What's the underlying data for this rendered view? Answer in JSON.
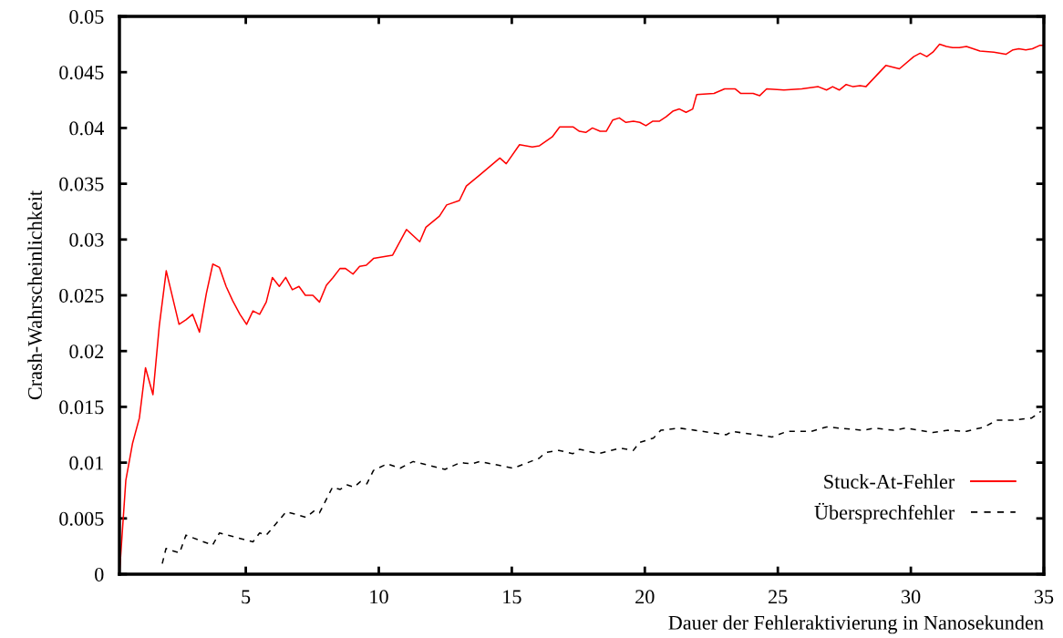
{
  "chart_data": {
    "type": "line",
    "xlabel": "Dauer der Fehleraktivierung in Nanosekunden",
    "ylabel": "Crash-Wahrscheinlichkeit",
    "xlim": [
      0.25,
      35
    ],
    "xticks": [
      5,
      10,
      15,
      20,
      25,
      30,
      35
    ],
    "ylim": [
      0,
      0.05
    ],
    "yticks": [
      0,
      0.005,
      0.01,
      0.015,
      0.02,
      0.025,
      0.03,
      0.035,
      0.04,
      0.045,
      0.05
    ],
    "grid": false,
    "legend": "bottom right",
    "marker": "none",
    "series": [
      {
        "name": "Stuck-At-Fehler",
        "color": "#ff0000",
        "line_style": "solid",
        "x": [
          0.25,
          0.49,
          0.74,
          1.0,
          1.23,
          1.51,
          1.75,
          2.01,
          2.49,
          2.75,
          3.0,
          3.26,
          3.52,
          3.76,
          4.01,
          4.26,
          4.51,
          4.78,
          5.03,
          5.27,
          5.52,
          5.77,
          6.0,
          6.26,
          6.5,
          6.75,
          7.0,
          7.24,
          7.52,
          7.77,
          8.03,
          8.28,
          8.54,
          8.75,
          9.03,
          9.28,
          9.53,
          9.8,
          10.26,
          10.52,
          11.04,
          11.54,
          11.77,
          12.28,
          12.55,
          13.03,
          13.29,
          13.8,
          14.55,
          14.79,
          15.29,
          15.77,
          16.04,
          16.52,
          16.8,
          17.3,
          17.54,
          17.78,
          18.03,
          18.32,
          18.55,
          18.79,
          19.04,
          19.29,
          19.57,
          19.81,
          20.04,
          20.29,
          20.54,
          20.8,
          21.05,
          21.3,
          21.55,
          21.8,
          21.95,
          22.6,
          23.0,
          23.4,
          23.6,
          23.86,
          24.07,
          24.32,
          24.58,
          25.23,
          25.9,
          26.52,
          26.83,
          27.06,
          27.31,
          27.57,
          27.83,
          28.09,
          28.31,
          29.06,
          29.57,
          30.11,
          30.35,
          30.6,
          30.83,
          31.08,
          31.34,
          31.57,
          31.82,
          32.09,
          32.6,
          33.12,
          33.57,
          33.84,
          34.06,
          34.32,
          34.57,
          34.84,
          35.0
        ],
        "values": [
          0,
          0.0084,
          0.0117,
          0.014,
          0.0185,
          0.0161,
          0.0223,
          0.0272,
          0.0224,
          0.0228,
          0.0233,
          0.0217,
          0.0252,
          0.0278,
          0.0275,
          0.0258,
          0.0245,
          0.0233,
          0.0224,
          0.0236,
          0.0233,
          0.0244,
          0.0266,
          0.0258,
          0.0266,
          0.0255,
          0.0258,
          0.025,
          0.025,
          0.0244,
          0.0259,
          0.0266,
          0.0274,
          0.0274,
          0.0269,
          0.0276,
          0.0277,
          0.0283,
          0.0285,
          0.0286,
          0.0309,
          0.0298,
          0.0311,
          0.0321,
          0.0331,
          0.0335,
          0.0348,
          0.0358,
          0.0373,
          0.0368,
          0.0385,
          0.0383,
          0.0384,
          0.0392,
          0.0401,
          0.0401,
          0.0397,
          0.0396,
          0.04,
          0.0397,
          0.0397,
          0.0407,
          0.0409,
          0.0405,
          0.0406,
          0.0405,
          0.0402,
          0.0406,
          0.0406,
          0.041,
          0.0415,
          0.0417,
          0.0414,
          0.0417,
          0.043,
          0.0431,
          0.0435,
          0.0435,
          0.0431,
          0.0431,
          0.0431,
          0.0429,
          0.0435,
          0.0434,
          0.0435,
          0.0437,
          0.0434,
          0.0437,
          0.0434,
          0.0439,
          0.0437,
          0.0438,
          0.0437,
          0.0456,
          0.0453,
          0.0464,
          0.0467,
          0.0464,
          0.0468,
          0.0475,
          0.0473,
          0.0472,
          0.0472,
          0.0473,
          0.0469,
          0.0468,
          0.0466,
          0.047,
          0.0471,
          0.047,
          0.0471,
          0.0474,
          0.0474
        ]
      },
      {
        "name": "Übersprechfehler",
        "color": "#000000",
        "line_style": "dashed",
        "x": [
          1.86,
          2.0,
          2.51,
          2.75,
          3.75,
          4.01,
          5.27,
          5.52,
          5.77,
          6.52,
          7.27,
          7.58,
          7.77,
          8.26,
          8.55,
          8.81,
          9.07,
          9.31,
          9.55,
          9.8,
          10.32,
          10.8,
          11.29,
          12.49,
          13.06,
          13.52,
          13.8,
          15.06,
          16.03,
          16.26,
          16.77,
          17.29,
          17.55,
          18.26,
          19.06,
          19.57,
          19.8,
          20.32,
          20.6,
          21.29,
          23.06,
          23.29,
          23.86,
          24.78,
          25.35,
          26.26,
          26.83,
          28.2,
          28.66,
          29.35,
          29.8,
          30.83,
          31.4,
          32.09,
          32.77,
          33.23,
          33.8,
          34.54,
          34.89
        ],
        "values": [
          0.00095,
          0.0023,
          0.0019,
          0.0035,
          0.0026,
          0.0037,
          0.0029,
          0.0037,
          0.0035,
          0.0056,
          0.0051,
          0.0057,
          0.0055,
          0.0078,
          0.0076,
          0.008,
          0.0078,
          0.0083,
          0.0081,
          0.0093,
          0.0099,
          0.0095,
          0.0101,
          0.0094,
          0.01,
          0.0099,
          0.0101,
          0.0095,
          0.0104,
          0.0109,
          0.0111,
          0.0108,
          0.0112,
          0.0108,
          0.0113,
          0.0111,
          0.0118,
          0.0122,
          0.0129,
          0.0131,
          0.0125,
          0.0128,
          0.0126,
          0.0123,
          0.0128,
          0.0128,
          0.0132,
          0.0129,
          0.0131,
          0.0129,
          0.0131,
          0.0127,
          0.0129,
          0.0128,
          0.0132,
          0.0138,
          0.0138,
          0.014,
          0.0146
        ]
      }
    ]
  }
}
